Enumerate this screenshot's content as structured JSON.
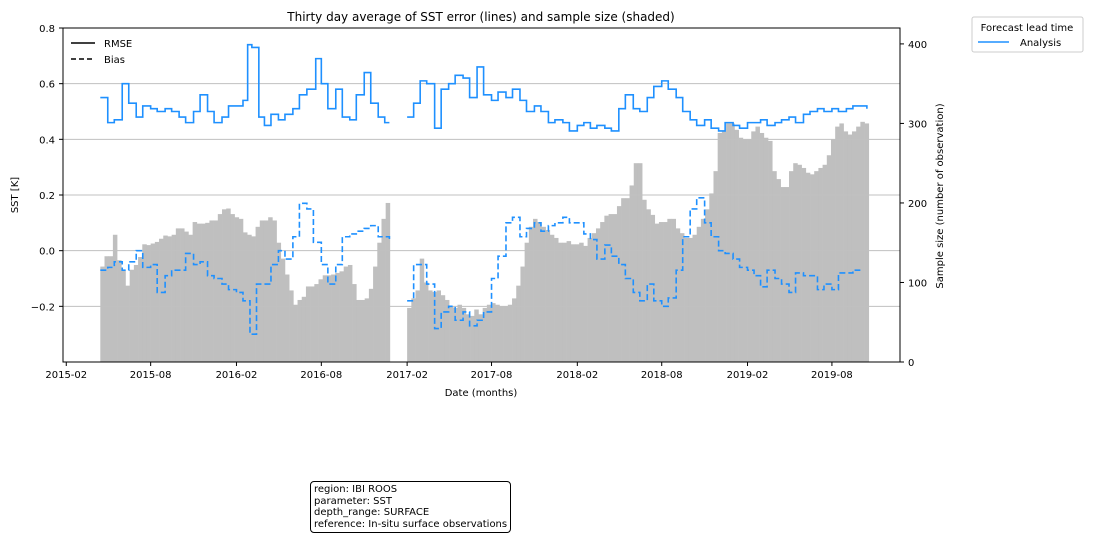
{
  "chart_data": {
    "type": "line",
    "title": "Thirty day average of SST error (lines) and sample size (shaded)",
    "xlabel": "Date (months)",
    "ylabel": "SST [K]",
    "y2label": "Sample size (number of observation)",
    "ylim": [
      -0.4,
      0.8
    ],
    "y2lim": [
      0,
      420
    ],
    "xlim": [
      "2015-01-25",
      "2019-12-25"
    ],
    "x_ticks": [
      "2015-02",
      "2015-08",
      "2016-02",
      "2016-08",
      "2017-02",
      "2017-08",
      "2018-02",
      "2018-08",
      "2019-02",
      "2019-08"
    ],
    "y_ticks": [
      "−0.2",
      "0.0",
      "0.2",
      "0.4",
      "0.6",
      "0.8"
    ],
    "y2_ticks": [
      "0",
      "100",
      "200",
      "300",
      "400"
    ],
    "grid": "horizontal",
    "style_legend": [
      {
        "label": "RMSE",
        "style": "solid"
      },
      {
        "label": "Bias",
        "style": "dashed"
      }
    ],
    "lead_legend": {
      "title": "Forecast lead time",
      "entries": [
        "Analysis"
      ]
    },
    "colors": {
      "line": "#1e90ff",
      "bars": "#bfbfbf",
      "grid": "#c0c0c0"
    },
    "series": [
      {
        "name": "RMSE",
        "style": "solid",
        "points": [
          [
            "2015-04-15",
            0.55
          ],
          [
            "2015-05-01",
            0.46
          ],
          [
            "2015-05-15",
            0.47
          ],
          [
            "2015-06-01",
            0.6
          ],
          [
            "2015-06-15",
            0.53
          ],
          [
            "2015-07-01",
            0.48
          ],
          [
            "2015-07-15",
            0.52
          ],
          [
            "2015-08-01",
            0.51
          ],
          [
            "2015-08-15",
            0.5
          ],
          [
            "2015-09-01",
            0.51
          ],
          [
            "2015-09-15",
            0.5
          ],
          [
            "2015-10-01",
            0.48
          ],
          [
            "2015-10-15",
            0.46
          ],
          [
            "2015-11-01",
            0.5
          ],
          [
            "2015-11-15",
            0.56
          ],
          [
            "2015-12-01",
            0.5
          ],
          [
            "2015-12-15",
            0.46
          ],
          [
            "2016-01-01",
            0.48
          ],
          [
            "2016-01-15",
            0.52
          ],
          [
            "2016-02-01",
            0.52
          ],
          [
            "2016-02-15",
            0.54
          ],
          [
            "2016-02-25",
            0.74
          ],
          [
            "2016-03-05",
            0.73
          ],
          [
            "2016-03-20",
            0.48
          ],
          [
            "2016-04-01",
            0.45
          ],
          [
            "2016-04-15",
            0.49
          ],
          [
            "2016-05-01",
            0.47
          ],
          [
            "2016-05-15",
            0.49
          ],
          [
            "2016-06-01",
            0.51
          ],
          [
            "2016-06-15",
            0.56
          ],
          [
            "2016-07-01",
            0.58
          ],
          [
            "2016-07-20",
            0.69
          ],
          [
            "2016-08-01",
            0.6
          ],
          [
            "2016-08-15",
            0.51
          ],
          [
            "2016-09-01",
            0.58
          ],
          [
            "2016-09-15",
            0.48
          ],
          [
            "2016-10-01",
            0.47
          ],
          [
            "2016-10-15",
            0.56
          ],
          [
            "2016-11-01",
            0.64
          ],
          [
            "2016-11-15",
            0.53
          ],
          [
            "2016-12-01",
            0.48
          ],
          [
            "2016-12-15",
            0.46
          ],
          [
            "2016-12-25",
            0.46
          ]
        ]
      },
      {
        "name": "RMSE",
        "style": "solid",
        "points": [
          [
            "2017-02-01",
            0.48
          ],
          [
            "2017-02-15",
            0.53
          ],
          [
            "2017-03-01",
            0.61
          ],
          [
            "2017-03-15",
            0.6
          ],
          [
            "2017-04-01",
            0.44
          ],
          [
            "2017-04-15",
            0.58
          ],
          [
            "2017-05-01",
            0.6
          ],
          [
            "2017-05-15",
            0.63
          ],
          [
            "2017-06-01",
            0.62
          ],
          [
            "2017-06-15",
            0.55
          ],
          [
            "2017-07-01",
            0.66
          ],
          [
            "2017-07-15",
            0.56
          ],
          [
            "2017-08-01",
            0.54
          ],
          [
            "2017-08-15",
            0.57
          ],
          [
            "2017-09-01",
            0.55
          ],
          [
            "2017-09-15",
            0.58
          ],
          [
            "2017-10-01",
            0.54
          ],
          [
            "2017-10-15",
            0.5
          ],
          [
            "2017-11-01",
            0.52
          ],
          [
            "2017-11-15",
            0.5
          ],
          [
            "2017-12-01",
            0.46
          ],
          [
            "2017-12-15",
            0.47
          ],
          [
            "2018-01-01",
            0.46
          ],
          [
            "2018-01-15",
            0.43
          ],
          [
            "2018-02-01",
            0.45
          ],
          [
            "2018-02-15",
            0.46
          ],
          [
            "2018-03-01",
            0.44
          ],
          [
            "2018-03-15",
            0.45
          ],
          [
            "2018-04-01",
            0.44
          ],
          [
            "2018-04-15",
            0.43
          ],
          [
            "2018-05-01",
            0.51
          ],
          [
            "2018-05-15",
            0.56
          ],
          [
            "2018-06-01",
            0.51
          ],
          [
            "2018-06-15",
            0.5
          ],
          [
            "2018-07-01",
            0.55
          ],
          [
            "2018-07-15",
            0.59
          ],
          [
            "2018-08-01",
            0.61
          ],
          [
            "2018-08-15",
            0.58
          ],
          [
            "2018-09-01",
            0.55
          ],
          [
            "2018-09-15",
            0.5
          ],
          [
            "2018-10-01",
            0.47
          ],
          [
            "2018-10-15",
            0.45
          ],
          [
            "2018-11-01",
            0.47
          ],
          [
            "2018-11-15",
            0.44
          ],
          [
            "2018-12-01",
            0.43
          ],
          [
            "2018-12-15",
            0.46
          ],
          [
            "2019-01-01",
            0.45
          ],
          [
            "2019-01-15",
            0.44
          ],
          [
            "2019-02-01",
            0.46
          ],
          [
            "2019-02-15",
            0.46
          ],
          [
            "2019-03-01",
            0.47
          ],
          [
            "2019-03-15",
            0.45
          ],
          [
            "2019-04-01",
            0.46
          ],
          [
            "2019-04-15",
            0.47
          ],
          [
            "2019-05-01",
            0.48
          ],
          [
            "2019-05-15",
            0.46
          ],
          [
            "2019-06-01",
            0.49
          ],
          [
            "2019-06-15",
            0.5
          ],
          [
            "2019-07-01",
            0.51
          ],
          [
            "2019-07-15",
            0.5
          ],
          [
            "2019-08-01",
            0.51
          ],
          [
            "2019-08-15",
            0.5
          ],
          [
            "2019-09-01",
            0.51
          ],
          [
            "2019-09-15",
            0.52
          ],
          [
            "2019-10-01",
            0.52
          ],
          [
            "2019-10-15",
            0.51
          ]
        ]
      },
      {
        "name": "Bias",
        "style": "dashed",
        "points": [
          [
            "2015-04-15",
            -0.07
          ],
          [
            "2015-05-01",
            -0.06
          ],
          [
            "2015-05-15",
            -0.04
          ],
          [
            "2015-06-01",
            -0.07
          ],
          [
            "2015-06-15",
            -0.04
          ],
          [
            "2015-07-01",
            -0.0
          ],
          [
            "2015-07-15",
            -0.06
          ],
          [
            "2015-08-01",
            -0.05
          ],
          [
            "2015-08-15",
            -0.15
          ],
          [
            "2015-09-01",
            -0.09
          ],
          [
            "2015-09-15",
            -0.07
          ],
          [
            "2015-10-01",
            -0.07
          ],
          [
            "2015-10-15",
            -0.01
          ],
          [
            "2015-11-01",
            -0.05
          ],
          [
            "2015-11-15",
            -0.04
          ],
          [
            "2015-12-01",
            -0.09
          ],
          [
            "2015-12-15",
            -0.1
          ],
          [
            "2016-01-01",
            -0.12
          ],
          [
            "2016-01-15",
            -0.14
          ],
          [
            "2016-02-01",
            -0.15
          ],
          [
            "2016-02-15",
            -0.18
          ],
          [
            "2016-03-01",
            -0.3
          ],
          [
            "2016-03-15",
            -0.12
          ],
          [
            "2016-04-01",
            -0.12
          ],
          [
            "2016-04-15",
            -0.05
          ],
          [
            "2016-05-01",
            -0.0
          ],
          [
            "2016-05-15",
            -0.03
          ],
          [
            "2016-06-01",
            0.05
          ],
          [
            "2016-06-15",
            0.17
          ],
          [
            "2016-07-01",
            0.15
          ],
          [
            "2016-07-15",
            0.03
          ],
          [
            "2016-08-01",
            -0.05
          ],
          [
            "2016-08-15",
            -0.12
          ],
          [
            "2016-09-01",
            -0.05
          ],
          [
            "2016-09-15",
            0.05
          ],
          [
            "2016-10-01",
            0.06
          ],
          [
            "2016-10-15",
            0.07
          ],
          [
            "2016-11-01",
            0.08
          ],
          [
            "2016-11-15",
            0.09
          ],
          [
            "2016-12-01",
            0.05
          ],
          [
            "2016-12-25",
            0.04
          ]
        ]
      },
      {
        "name": "Bias",
        "style": "dashed",
        "points": [
          [
            "2017-02-01",
            -0.18
          ],
          [
            "2017-02-15",
            -0.05
          ],
          [
            "2017-03-01",
            -0.05
          ],
          [
            "2017-03-15",
            -0.12
          ],
          [
            "2017-04-01",
            -0.28
          ],
          [
            "2017-04-15",
            -0.22
          ],
          [
            "2017-05-01",
            -0.2
          ],
          [
            "2017-05-15",
            -0.25
          ],
          [
            "2017-06-01",
            -0.22
          ],
          [
            "2017-06-15",
            -0.27
          ],
          [
            "2017-07-01",
            -0.25
          ],
          [
            "2017-07-15",
            -0.22
          ],
          [
            "2017-08-01",
            -0.1
          ],
          [
            "2017-08-15",
            -0.02
          ],
          [
            "2017-09-01",
            0.1
          ],
          [
            "2017-09-15",
            0.12
          ],
          [
            "2017-10-01",
            0.05
          ],
          [
            "2017-10-15",
            0.08
          ],
          [
            "2017-11-01",
            0.1
          ],
          [
            "2017-11-15",
            0.07
          ],
          [
            "2017-12-01",
            0.09
          ],
          [
            "2017-12-15",
            0.1
          ],
          [
            "2018-01-01",
            0.12
          ],
          [
            "2018-01-15",
            0.1
          ],
          [
            "2018-02-01",
            0.1
          ],
          [
            "2018-02-15",
            0.06
          ],
          [
            "2018-03-01",
            0.04
          ],
          [
            "2018-03-15",
            -0.03
          ],
          [
            "2018-04-01",
            0.02
          ],
          [
            "2018-04-15",
            -0.02
          ],
          [
            "2018-05-01",
            -0.05
          ],
          [
            "2018-05-15",
            -0.1
          ],
          [
            "2018-06-01",
            -0.15
          ],
          [
            "2018-06-15",
            -0.18
          ],
          [
            "2018-07-01",
            -0.12
          ],
          [
            "2018-07-15",
            -0.18
          ],
          [
            "2018-08-01",
            -0.2
          ],
          [
            "2018-08-15",
            -0.17
          ],
          [
            "2018-09-01",
            -0.07
          ],
          [
            "2018-09-15",
            0.05
          ],
          [
            "2018-10-01",
            0.15
          ],
          [
            "2018-10-15",
            0.19
          ],
          [
            "2018-11-01",
            0.1
          ],
          [
            "2018-11-15",
            0.05
          ],
          [
            "2018-12-01",
            0.0
          ],
          [
            "2018-12-15",
            -0.01
          ],
          [
            "2019-01-01",
            -0.03
          ],
          [
            "2019-01-15",
            -0.06
          ],
          [
            "2019-02-01",
            -0.07
          ],
          [
            "2019-02-15",
            -0.09
          ],
          [
            "2019-03-01",
            -0.13
          ],
          [
            "2019-03-15",
            -0.07
          ],
          [
            "2019-04-01",
            -0.1
          ],
          [
            "2019-04-15",
            -0.12
          ],
          [
            "2019-05-01",
            -0.15
          ],
          [
            "2019-05-15",
            -0.08
          ],
          [
            "2019-06-01",
            -0.09
          ],
          [
            "2019-06-15",
            -0.09
          ],
          [
            "2019-07-01",
            -0.14
          ],
          [
            "2019-07-15",
            -0.12
          ],
          [
            "2019-08-01",
            -0.14
          ],
          [
            "2019-08-15",
            -0.08
          ],
          [
            "2019-09-01",
            -0.08
          ],
          [
            "2019-09-15",
            -0.07
          ],
          [
            "2019-10-01",
            -0.07
          ]
        ]
      }
    ],
    "bar_step_days": 9,
    "bars": [
      {
        "start": "2015-04-15",
        "end": "2016-12-25",
        "values": [
          120,
          133,
          133,
          160,
          128,
          116,
          96,
          116,
          122,
          132,
          148,
          147,
          149,
          151,
          155,
          159,
          158,
          160,
          168,
          168,
          164,
          160,
          176,
          174,
          174,
          175,
          178,
          178,
          186,
          192,
          193,
          186,
          182,
          180,
          163,
          160,
          158,
          170,
          178,
          178,
          182,
          178,
          150,
          130,
          110,
          90,
          72,
          78,
          82,
          95,
          95,
          98,
          104,
          109,
          109,
          110,
          112,
          114,
          120,
          122,
          98,
          78,
          78,
          80,
          92,
          120,
          150,
          180,
          200,
          243,
          245,
          235,
          220,
          206,
          186,
          178,
          168,
          160,
          148,
          138,
          128,
          130,
          136,
          144,
          148,
          138,
          128,
          118,
          110,
          98,
          92,
          88,
          84,
          82,
          80
        ]
      },
      {
        "start": "2017-02-01",
        "end": "2019-10-15",
        "values": [
          68,
          80,
          90,
          130,
          100,
          90,
          88,
          90,
          84,
          78,
          70,
          68,
          72,
          68,
          60,
          58,
          66,
          60,
          68,
          72,
          74,
          72,
          70,
          70,
          72,
          80,
          96,
          120,
          150,
          170,
          180,
          176,
          170,
          166,
          160,
          156,
          150,
          150,
          152,
          148,
          148,
          150,
          146,
          156,
          162,
          168,
          176,
          184,
          186,
          186,
          196,
          206,
          206,
          222,
          250,
          250,
          204,
          192,
          185,
          174,
          176,
          176,
          180,
          180,
          168,
          162,
          156,
          156,
          160,
          170,
          180,
          192,
          212,
          240,
          288,
          290,
          300,
          300,
          292,
          282,
          280,
          280,
          290,
          296,
          288,
          282,
          278,
          240,
          230,
          220,
          220,
          240,
          250,
          248,
          244,
          238,
          236,
          240,
          244,
          248,
          260,
          280,
          296,
          300,
          290,
          286,
          290,
          296,
          302,
          300,
          298,
          296,
          298,
          300,
          310,
          320,
          330,
          336
        ]
      }
    ]
  },
  "info_box": {
    "region": "region: IBI ROOS",
    "parameter": "parameter: SST",
    "depth_range": "depth_range: SURFACE",
    "reference": "reference: In-situ surface observations"
  }
}
